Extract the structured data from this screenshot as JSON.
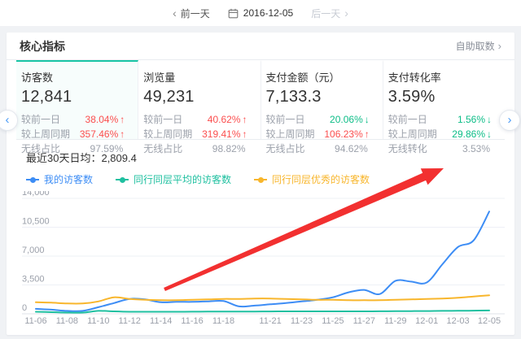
{
  "date_nav": {
    "prev_label": "前一天",
    "date": "2016-12-05",
    "next_label": "后一天"
  },
  "header": {
    "title": "核心指标",
    "link_label": "自助取数"
  },
  "icons": {
    "up": "↑",
    "down": "↓",
    "chevron_left": "‹",
    "chevron_right": "›"
  },
  "colors": {
    "accent_teal": "#19c5a6",
    "up_red": "#fb4e4e",
    "down_green": "#0cbd87",
    "annotation_red": "#f23030"
  },
  "cards": [
    {
      "title": "访客数",
      "value": "12,841",
      "selected": true,
      "rows": [
        {
          "label": "较前一日",
          "value": "38.04%",
          "trend": "up"
        },
        {
          "label": "较上周同期",
          "value": "357.46%",
          "trend": "up"
        },
        {
          "label": "无线占比",
          "value": "97.59%",
          "trend": "none"
        }
      ]
    },
    {
      "title": "浏览量",
      "value": "49,231",
      "selected": false,
      "rows": [
        {
          "label": "较前一日",
          "value": "40.62%",
          "trend": "up"
        },
        {
          "label": "较上周同期",
          "value": "319.41%",
          "trend": "up"
        },
        {
          "label": "无线占比",
          "value": "98.82%",
          "trend": "none"
        }
      ]
    },
    {
      "title": "支付金额（元）",
      "value": "7,133.3",
      "selected": false,
      "rows": [
        {
          "label": "较前一日",
          "value": "20.06%",
          "trend": "down"
        },
        {
          "label": "较上周同期",
          "value": "106.23%",
          "trend": "up"
        },
        {
          "label": "无线占比",
          "value": "94.62%",
          "trend": "none"
        }
      ]
    },
    {
      "title": "支付转化率",
      "value": "3.59%",
      "selected": false,
      "rows": [
        {
          "label": "较前一日",
          "value": "1.56%",
          "trend": "down"
        },
        {
          "label": "较上周同期",
          "value": "29.86%",
          "trend": "down"
        },
        {
          "label": "无线转化",
          "value": "3.53%",
          "trend": "none"
        }
      ]
    }
  ],
  "chart_data": {
    "type": "line",
    "title": "最近30天日均：2,809.4",
    "x": [
      "11-06",
      "11-07",
      "11-08",
      "11-09",
      "11-10",
      "11-11",
      "11-12",
      "11-13",
      "11-14",
      "11-15",
      "11-16",
      "11-17",
      "11-18",
      "11-19",
      "11-20",
      "11-21",
      "11-22",
      "11-23",
      "11-24",
      "11-25",
      "11-26",
      "11-27",
      "11-28",
      "11-29",
      "11-30",
      "12-01",
      "12-02",
      "12-03",
      "12-04",
      "12-05"
    ],
    "x_tick_indices": [
      0,
      2,
      4,
      6,
      8,
      10,
      12,
      15,
      17,
      19,
      21,
      23,
      25,
      27,
      29
    ],
    "series": [
      {
        "name": "我的访客数",
        "color": "#3d8df5",
        "values": [
          600,
          500,
          350,
          350,
          800,
          1300,
          1800,
          1750,
          1400,
          1450,
          1450,
          1500,
          1550,
          900,
          1000,
          1150,
          1300,
          1500,
          1700,
          2000,
          2600,
          2900,
          2400,
          4000,
          3900,
          3800,
          6000,
          8100,
          8900,
          12400
        ]
      },
      {
        "name": "同行同层平均的访客数",
        "color": "#1fc0a0",
        "values": [
          250,
          200,
          150,
          150,
          350,
          300,
          250,
          250,
          250,
          250,
          260,
          270,
          270,
          280,
          280,
          290,
          300,
          300,
          300,
          300,
          300,
          300,
          310,
          320,
          330,
          340,
          350,
          360,
          380,
          400
        ]
      },
      {
        "name": "同行同层优秀的访客数",
        "color": "#f8b62c",
        "values": [
          1400,
          1350,
          1250,
          1250,
          1500,
          2000,
          1800,
          1700,
          1650,
          1650,
          1700,
          1750,
          1800,
          1800,
          1850,
          1850,
          1800,
          1750,
          1700,
          1700,
          1650,
          1650,
          1650,
          1700,
          1750,
          1800,
          1850,
          1950,
          2100,
          2250
        ]
      }
    ],
    "ylim": [
      0,
      14000
    ],
    "yticks": [
      0,
      3500,
      7000,
      10500,
      14000
    ],
    "grid": true,
    "legend_position": "top-left"
  },
  "annotation_arrow": {
    "from": [
      202,
      356
    ],
    "to": [
      545,
      207
    ],
    "color": "#f23030"
  }
}
